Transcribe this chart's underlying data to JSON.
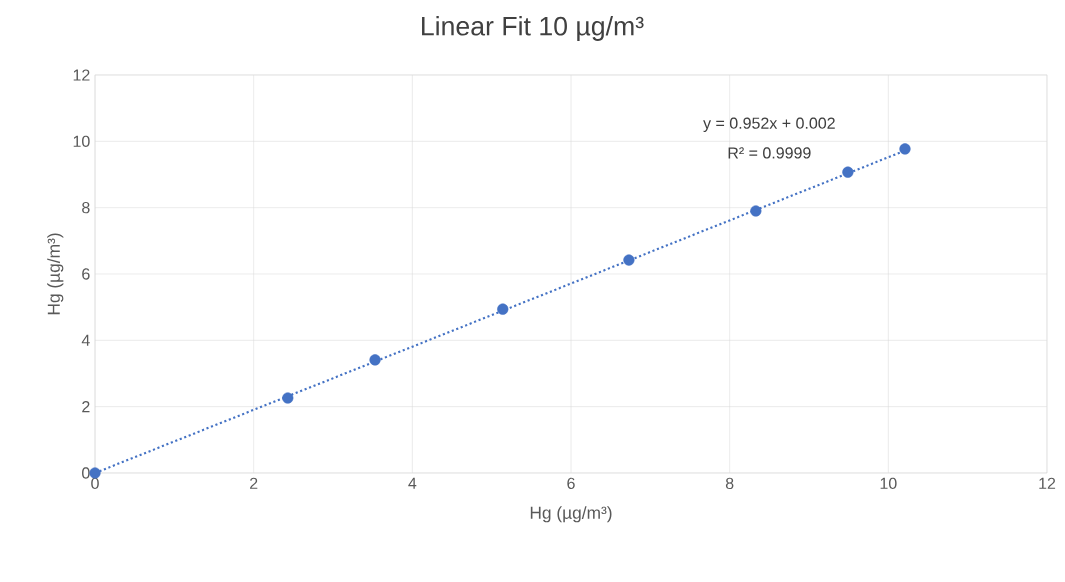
{
  "chart_data": {
    "type": "scatter",
    "title": "Linear Fit 10 µg/m³",
    "xlabel": "Hg (µg/m³)",
    "ylabel": "Hg (µg/m³)",
    "series": [
      {
        "color": "#4472c4",
        "marker": "circle",
        "x": [
          0,
          2.43,
          3.53,
          5.14,
          6.73,
          8.33,
          9.49,
          10.21
        ],
        "values": [
          0,
          2.26,
          3.41,
          4.94,
          6.42,
          7.9,
          9.07,
          9.77
        ]
      },
      {
        "type": "line",
        "color": "#4472c4",
        "marker": "none",
        "line_style": "dotted",
        "x": [
          0,
          10.21
        ],
        "values": [
          0,
          9.72
        ]
      }
    ],
    "annotations": [
      "y = 0.952x + 0.002",
      "R² = 0.9999"
    ],
    "xlim": [
      0,
      12
    ],
    "ylim": [
      0,
      12
    ],
    "xticks": [
      0,
      2,
      4,
      6,
      8,
      10,
      12
    ],
    "yticks": [
      0,
      2,
      4,
      6,
      8,
      10,
      12
    ],
    "grid": true
  }
}
